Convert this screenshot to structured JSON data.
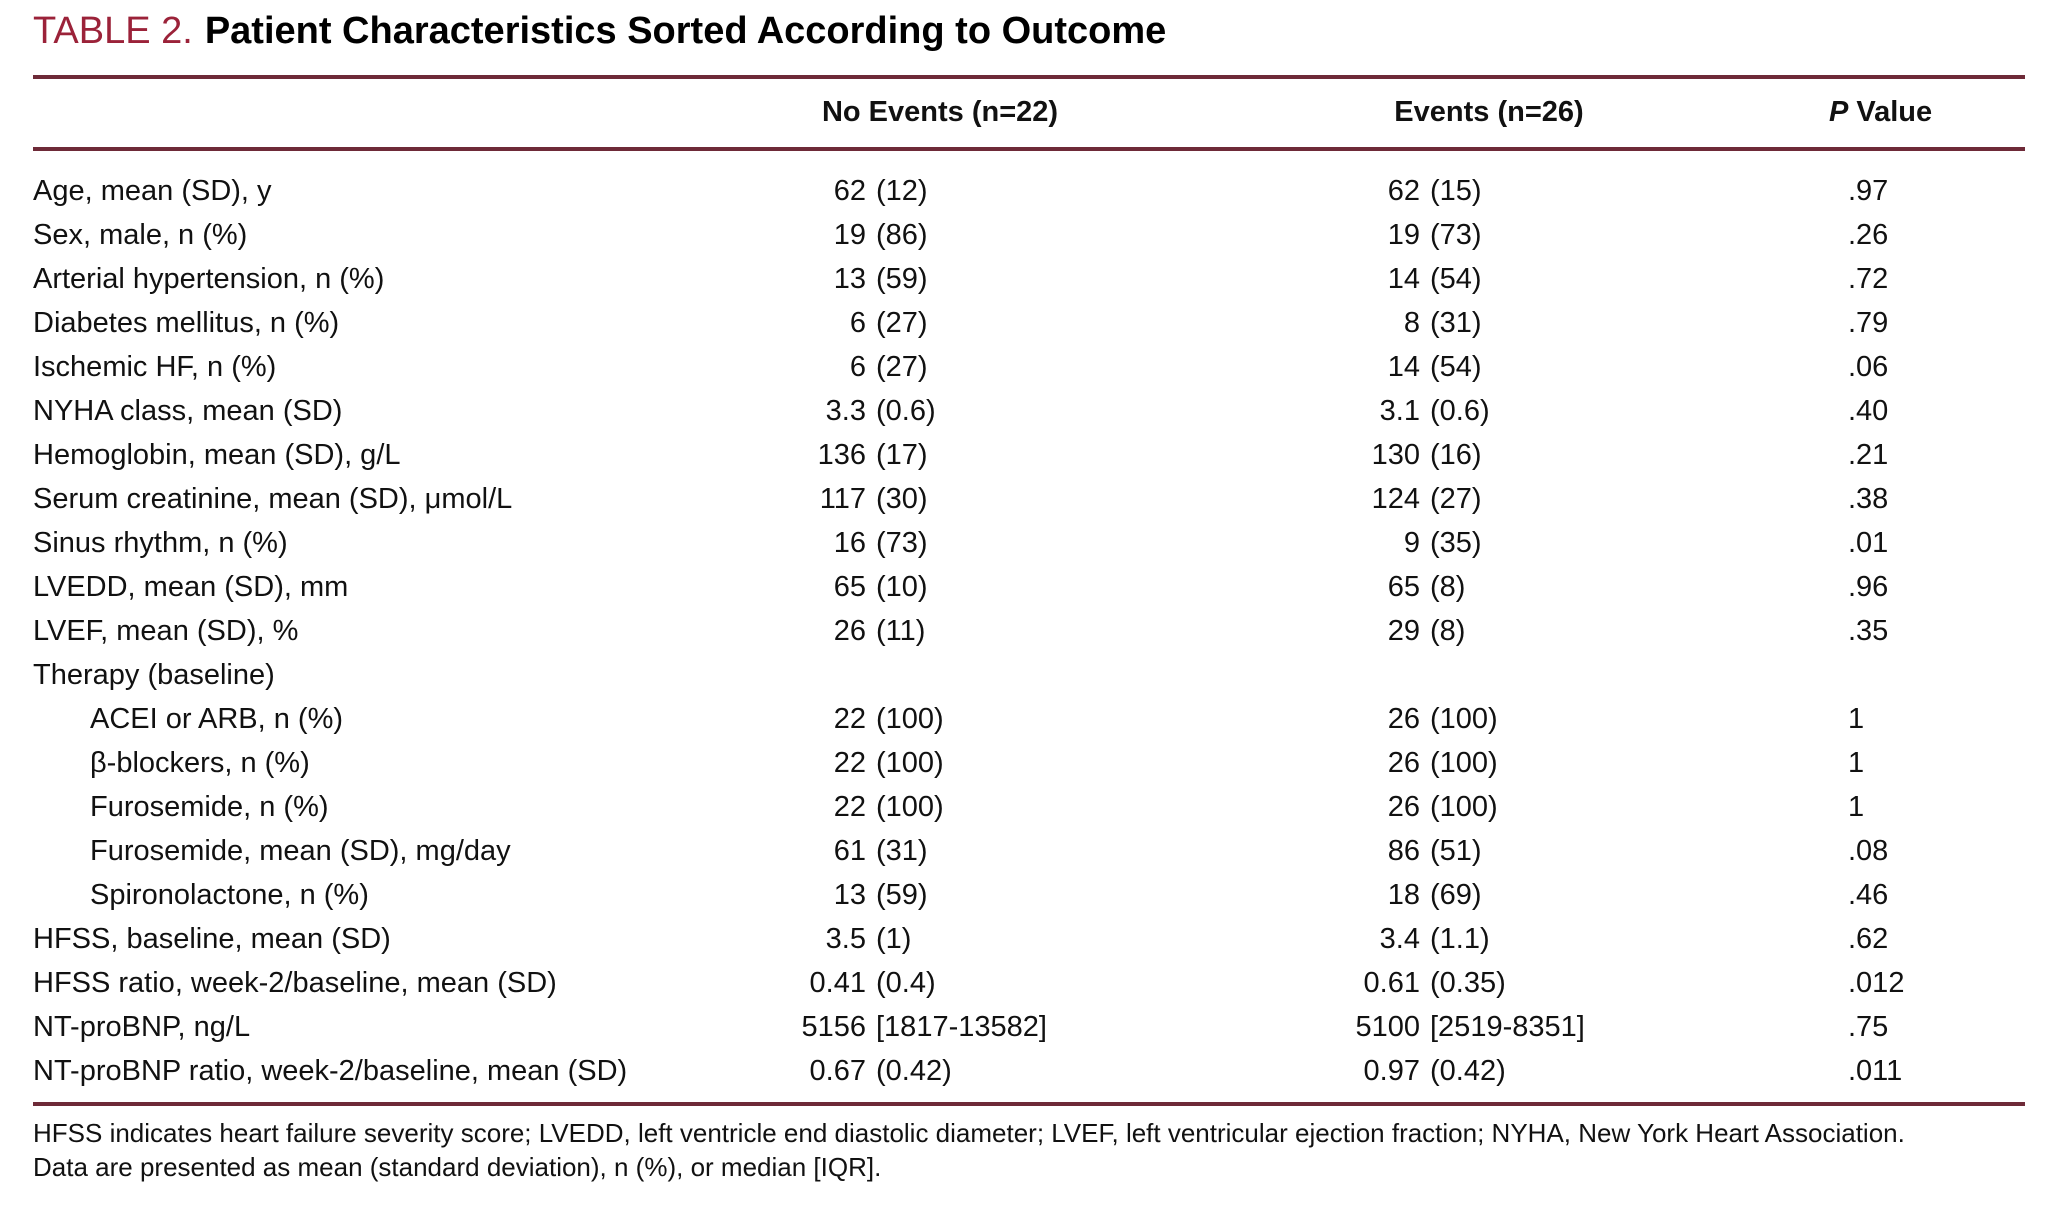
{
  "title": {
    "label": "TABLE 2.",
    "text": "Patient Characteristics Sorted According to Outcome"
  },
  "columns": {
    "no_events": "No Events (n=22)",
    "events": "Events (n=26)",
    "p_italic": "P",
    "p_rest": "Value"
  },
  "rows": [
    {
      "label": "Age, mean (SD), y",
      "indent": false,
      "no_events": "62 (12)",
      "events": "62 (15)",
      "p": ".97"
    },
    {
      "label": "Sex, male, n (%)",
      "indent": false,
      "no_events": "19 (86)",
      "events": "19 (73)",
      "p": ".26"
    },
    {
      "label": "Arterial hypertension, n (%)",
      "indent": false,
      "no_events": "13 (59)",
      "events": "14 (54)",
      "p": ".72"
    },
    {
      "label": "Diabetes mellitus, n (%)",
      "indent": false,
      "no_events": "6 (27)",
      "events": "8 (31)",
      "p": ".79"
    },
    {
      "label": "Ischemic HF, n (%)",
      "indent": false,
      "no_events": "6 (27)",
      "events": "14 (54)",
      "p": ".06"
    },
    {
      "label": "NYHA class, mean (SD)",
      "indent": false,
      "no_events": "3.3 (0.6)",
      "events": "3.1 (0.6)",
      "p": ".40"
    },
    {
      "label": "Hemoglobin, mean (SD), g/L",
      "indent": false,
      "no_events": "136 (17)",
      "events": "130 (16)",
      "p": ".21"
    },
    {
      "label": "Serum creatinine, mean (SD), μmol/L",
      "indent": false,
      "no_events": "117 (30)",
      "events": "124 (27)",
      "p": ".38"
    },
    {
      "label": "Sinus rhythm, n (%)",
      "indent": false,
      "no_events": "16 (73)",
      "events": "9 (35)",
      "p": ".01"
    },
    {
      "label": "LVEDD, mean (SD), mm",
      "indent": false,
      "no_events": "65 (10)",
      "events": "65 (8)",
      "p": ".96"
    },
    {
      "label": "LVEF, mean (SD), %",
      "indent": false,
      "no_events": "26 (11)",
      "events": "29 (8)",
      "p": ".35"
    },
    {
      "label": "Therapy (baseline)",
      "indent": false,
      "no_events": "",
      "events": "",
      "p": ""
    },
    {
      "label": "ACEI or ARB, n (%)",
      "indent": true,
      "no_events": "22 (100)",
      "events": "26 (100)",
      "p": "1"
    },
    {
      "label": "β-blockers, n (%)",
      "indent": true,
      "no_events": "22 (100)",
      "events": "26 (100)",
      "p": "1"
    },
    {
      "label": "Furosemide, n (%)",
      "indent": true,
      "no_events": "22 (100)",
      "events": "26 (100)",
      "p": "1"
    },
    {
      "label": "Furosemide, mean (SD), mg/day",
      "indent": true,
      "no_events": "61 (31)",
      "events": "86 (51)",
      "p": ".08"
    },
    {
      "label": "Spironolactone, n (%)",
      "indent": true,
      "no_events": "13 (59)",
      "events": "18 (69)",
      "p": ".46"
    },
    {
      "label": "HFSS, baseline, mean (SD)",
      "indent": false,
      "no_events": "3.5 (1)",
      "events": "3.4 (1.1)",
      "p": ".62"
    },
    {
      "label": "HFSS ratio, week-2/baseline, mean (SD)",
      "indent": false,
      "no_events": "0.41 (0.4)",
      "events": "0.61 (0.35)",
      "p": ".012"
    },
    {
      "label": "NT-proBNP, ng/L",
      "indent": false,
      "no_events": "5156 [1817-13582]",
      "events": "5100 [2519-8351]",
      "p": ".75"
    },
    {
      "label": "NT-proBNP ratio, week-2/baseline, mean (SD)",
      "indent": false,
      "no_events": "0.67 (0.42)",
      "events": "0.97 (0.42)",
      "p": ".011"
    }
  ],
  "footnotes": [
    "HFSS indicates heart failure severity score; LVEDD, left ventricle end diastolic diameter; LVEF, left ventricular ejection fraction; NYHA, New York Heart Association.",
    "Data are presented as mean (standard deviation), n (%), or median [IQR]."
  ],
  "colors": {
    "accent": "#9b2239",
    "rule": "#6e2a38"
  }
}
